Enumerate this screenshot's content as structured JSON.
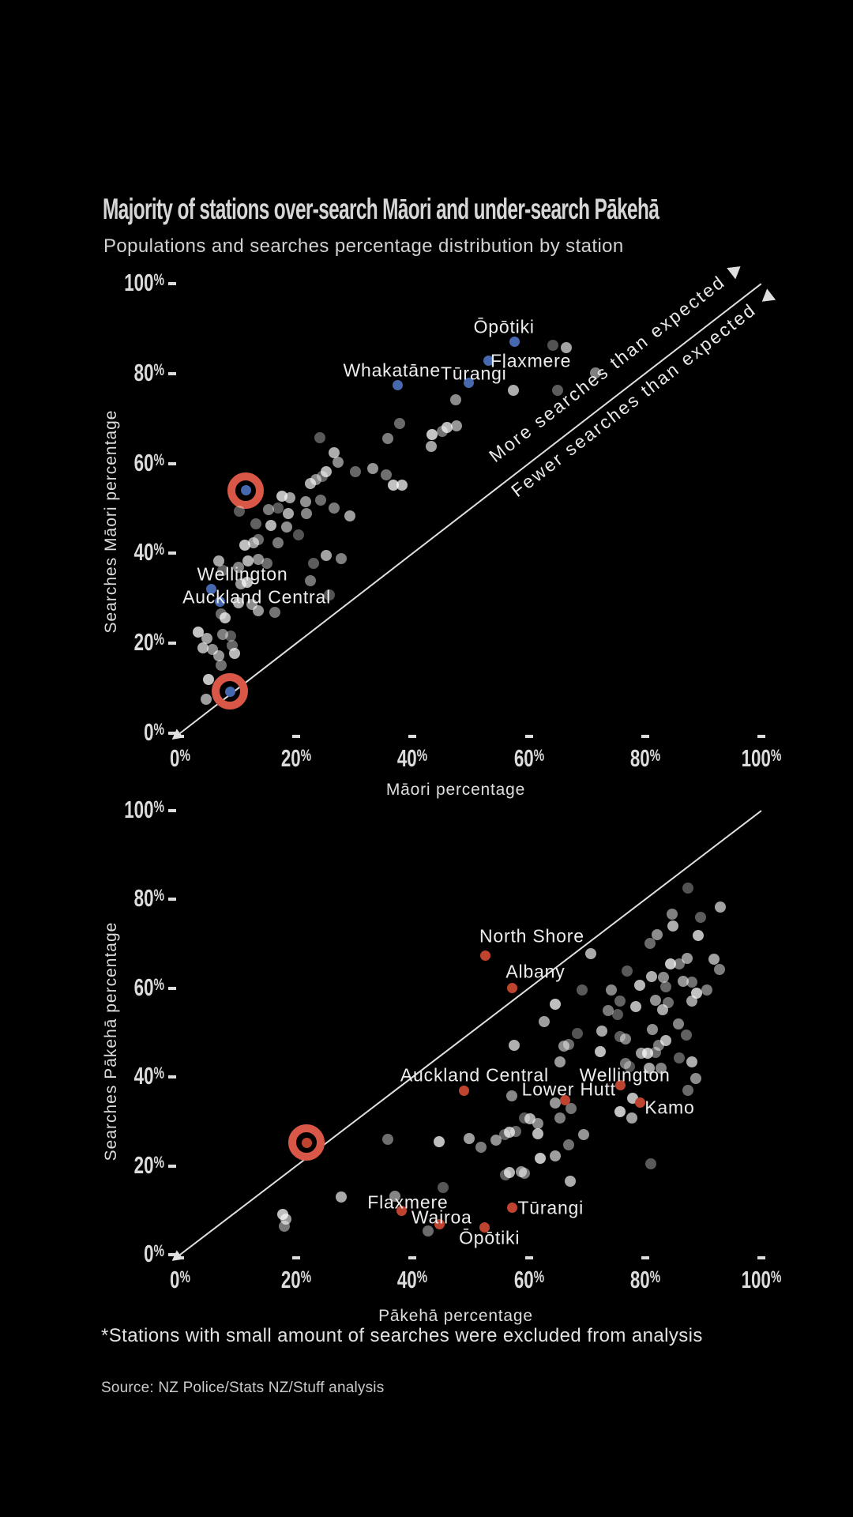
{
  "page": {
    "title": "Majority of stations over-search Māori and under-search Pākehā",
    "subtitle": "Populations and searches percentage distribution by station",
    "footnote": "*Stations with small amount of searches were excluded from analysis",
    "source": "Source: NZ Police/Stats NZ/Stuff analysis"
  },
  "colors": {
    "background": "#000000",
    "gray_dot_base": "#ffffff",
    "blue_dot": "#4668ae",
    "red_dot": "#bf4430",
    "ring": "#d85747",
    "line": "#e0e0e0",
    "text": "#e3e3e3"
  },
  "chart_data": [
    {
      "type": "scatter",
      "title": "Populations and searches percentage distribution by station",
      "xlabel": "Māori percentage",
      "ylabel": "Searches  Māori  percentage",
      "xlim": [
        0,
        100
      ],
      "ylim": [
        0,
        100
      ],
      "x_ticks": [
        0,
        20,
        40,
        60,
        80,
        100
      ],
      "y_ticks": [
        0,
        20,
        40,
        60,
        80,
        100
      ],
      "grid": false,
      "legend": "none",
      "diagonal_line": {
        "from": [
          0,
          0
        ],
        "to": [
          100,
          100
        ]
      },
      "annotations": [
        {
          "text": "More searches than expected",
          "side": "above_line",
          "arrow": "forward"
        },
        {
          "text": "Fewer searches than expected",
          "side": "below_line",
          "arrow": "backward"
        }
      ],
      "labeled_points": [
        {
          "name": "Ōpōtiki",
          "x": 57.5,
          "y": 87.0,
          "color": "blue",
          "label_offset": [
            -13,
            -19
          ]
        },
        {
          "name": "Flaxmere",
          "x": 53.0,
          "y": 82.8,
          "color": "blue",
          "label_offset": [
            54,
            0
          ]
        },
        {
          "name": "Whakatāne",
          "x": 37.4,
          "y": 77.5,
          "color": "blue",
          "label_offset": [
            -7,
            -18
          ]
        },
        {
          "name": "Tūrangi",
          "x": 49.7,
          "y": 77.9,
          "color": "blue",
          "label_offset": [
            6,
            -12
          ]
        },
        {
          "name": "Wellington",
          "x": 5.3,
          "y": 32.0,
          "color": "blue",
          "label_offset": [
            40,
            -19
          ]
        },
        {
          "name": "Auckland Central",
          "x": 6.8,
          "y": 29.3,
          "color": "blue",
          "label_offset": [
            47,
            -5
          ]
        }
      ],
      "circled_points": [
        {
          "x": 11.3,
          "y": 54.0,
          "color": "blue"
        },
        {
          "x": 8.6,
          "y": 9.3,
          "color": "blue"
        }
      ],
      "points": [
        [
          64.1,
          86.3
        ],
        [
          66.4,
          85.8
        ],
        [
          71.4,
          80.1
        ],
        [
          65,
          76.3
        ],
        [
          57.4,
          76.3
        ],
        [
          47.4,
          74.2
        ],
        [
          37.8,
          68.9
        ],
        [
          45.9,
          68
        ],
        [
          47.5,
          68.4
        ],
        [
          45.1,
          67.1
        ],
        [
          43.4,
          66.4
        ],
        [
          43.2,
          63.8
        ],
        [
          35.7,
          65.6
        ],
        [
          24,
          65.7
        ],
        [
          26.5,
          62.4
        ],
        [
          27.2,
          60.3
        ],
        [
          30.2,
          58.2
        ],
        [
          38.2,
          55.2
        ],
        [
          33.2,
          58.9
        ],
        [
          35.4,
          57.5
        ],
        [
          36.7,
          55.2
        ],
        [
          29.2,
          48.3
        ],
        [
          26.5,
          50.1
        ],
        [
          10.2,
          49.4
        ],
        [
          22.4,
          55.5
        ],
        [
          23.4,
          56.4
        ],
        [
          24.5,
          57.1
        ],
        [
          25.2,
          58.1
        ],
        [
          21.6,
          51.5
        ],
        [
          24.2,
          51.9
        ],
        [
          17.5,
          52.7
        ],
        [
          18.9,
          52.4
        ],
        [
          15.2,
          49.7
        ],
        [
          16.8,
          50.1
        ],
        [
          18.6,
          48.9
        ],
        [
          21.7,
          48.9
        ],
        [
          13.1,
          46.6
        ],
        [
          15.6,
          46.2
        ],
        [
          18.3,
          45.9
        ],
        [
          13.4,
          43.1
        ],
        [
          11.1,
          41.8
        ],
        [
          12.7,
          42.4
        ],
        [
          16.9,
          42.4
        ],
        [
          20.4,
          44.1
        ],
        [
          6.7,
          38.3
        ],
        [
          10,
          36.9
        ],
        [
          7.4,
          36.2
        ],
        [
          11.7,
          38.3
        ],
        [
          13.4,
          38.7
        ],
        [
          14.9,
          37.8
        ],
        [
          11.5,
          33.6
        ],
        [
          10.4,
          33.2
        ],
        [
          22.4,
          33.9
        ],
        [
          25.7,
          30.8
        ],
        [
          25.1,
          39.5
        ],
        [
          27.7,
          38.8
        ],
        [
          23,
          37.8
        ],
        [
          10.1,
          29
        ],
        [
          12.4,
          28.6
        ],
        [
          7,
          26.5
        ],
        [
          7.7,
          25.7
        ],
        [
          13.5,
          27.2
        ],
        [
          16.3,
          26.9
        ],
        [
          3.1,
          22.5
        ],
        [
          4.6,
          21.1
        ],
        [
          7.4,
          22
        ],
        [
          8.7,
          21.6
        ],
        [
          4,
          19
        ],
        [
          5.6,
          18.6
        ],
        [
          9,
          19.5
        ],
        [
          9.4,
          17.8
        ],
        [
          6.6,
          17.2
        ],
        [
          7,
          15.1
        ],
        [
          4.9,
          12
        ],
        [
          4.5,
          7.6
        ]
      ]
    },
    {
      "type": "scatter",
      "title": "Populations and searches percentage distribution by station",
      "xlabel": "Pākehā percentage",
      "ylabel": "Searches Pākehā percentage",
      "xlim": [
        0,
        100
      ],
      "ylim": [
        0,
        100
      ],
      "x_ticks": [
        0,
        20,
        40,
        60,
        80,
        100
      ],
      "y_ticks": [
        0,
        20,
        40,
        60,
        80,
        100
      ],
      "grid": false,
      "legend": "none",
      "diagonal_line": {
        "from": [
          0,
          0
        ],
        "to": [
          100,
          100
        ]
      },
      "annotations": [],
      "labeled_points": [
        {
          "name": "North Shore",
          "x": 52.5,
          "y": 67.3,
          "color": "red",
          "label_offset": [
            59,
            -25
          ]
        },
        {
          "name": "Albany",
          "x": 57.2,
          "y": 60.0,
          "color": "red",
          "label_offset": [
            29,
            -21
          ]
        },
        {
          "name": "Auckland Central",
          "x": 48.9,
          "y": 37.0,
          "color": "red",
          "label_offset": [
            13,
            -19
          ]
        },
        {
          "name": "Lower Hutt",
          "x": 66.2,
          "y": 34.8,
          "color": "red",
          "label_offset": [
            5,
            -13
          ]
        },
        {
          "name": "Wellington",
          "x": 75.7,
          "y": 38.1,
          "color": "red",
          "label_offset": [
            6,
            -13
          ]
        },
        {
          "name": "Kamo",
          "x": 79.2,
          "y": 34.2,
          "color": "red",
          "label_offset": [
            37,
            6
          ]
        },
        {
          "name": "Flaxmere",
          "x": 38.1,
          "y": 9.8,
          "color": "red",
          "label_offset": [
            8,
            -11
          ]
        },
        {
          "name": "Wairoa",
          "x": 44.6,
          "y": 6.8,
          "color": "red",
          "label_offset": [
            3,
            -9
          ]
        },
        {
          "name": "Ōpōtiki",
          "x": 52.4,
          "y": 6.2,
          "color": "red",
          "label_offset": [
            6,
            14
          ]
        },
        {
          "name": "Tūrangi",
          "x": 57.1,
          "y": 10.5,
          "color": "red",
          "label_offset": [
            49,
            0
          ]
        }
      ],
      "circled_points": [
        {
          "x": 21.8,
          "y": 25.2,
          "color": "red"
        }
      ],
      "points": [
        [
          87.3,
          82.6
        ],
        [
          92.9,
          78.3
        ],
        [
          84.7,
          76.7
        ],
        [
          89.5,
          76
        ],
        [
          84.8,
          74
        ],
        [
          82.1,
          72.1
        ],
        [
          80.9,
          70.1
        ],
        [
          89.1,
          71.9
        ],
        [
          87.2,
          66.7
        ],
        [
          85.9,
          65.5
        ],
        [
          84.4,
          65.5
        ],
        [
          91.8,
          66.5
        ],
        [
          92.8,
          64.2
        ],
        [
          76.9,
          63.9
        ],
        [
          81.1,
          62.6
        ],
        [
          83.2,
          62.5
        ],
        [
          83.5,
          60.3
        ],
        [
          79.1,
          60.7
        ],
        [
          86.6,
          61.6
        ],
        [
          88,
          61.4
        ],
        [
          88.8,
          58.9
        ],
        [
          88,
          57.1
        ],
        [
          90.6,
          59.6
        ],
        [
          69.1,
          59.6
        ],
        [
          70.6,
          67.8
        ],
        [
          74.2,
          59.6
        ],
        [
          75.7,
          57.1
        ],
        [
          78.4,
          55.9
        ],
        [
          81.8,
          57.3
        ],
        [
          83.9,
          56.8
        ],
        [
          64.5,
          56.4
        ],
        [
          62.7,
          52.5
        ],
        [
          73.6,
          55
        ],
        [
          75.3,
          54.1
        ],
        [
          83,
          55.2
        ],
        [
          85.8,
          52
        ],
        [
          87.1,
          49.5
        ],
        [
          83.5,
          48.2
        ],
        [
          81.2,
          50.7
        ],
        [
          81.8,
          45.6
        ],
        [
          80.5,
          45.4
        ],
        [
          79.4,
          45.4
        ],
        [
          82.4,
          47.2
        ],
        [
          68.4,
          49.8
        ],
        [
          72.5,
          50.4
        ],
        [
          76.6,
          48.6
        ],
        [
          75.7,
          49.1
        ],
        [
          57.5,
          47.2
        ],
        [
          66,
          47
        ],
        [
          66.9,
          47.3
        ],
        [
          72.3,
          45.7
        ],
        [
          65.4,
          43.4
        ],
        [
          76.6,
          43.1
        ],
        [
          77.3,
          42.3
        ],
        [
          80.7,
          42
        ],
        [
          82.8,
          42
        ],
        [
          85.9,
          44.3
        ],
        [
          88,
          43.4
        ],
        [
          88.7,
          39.7
        ],
        [
          87.3,
          37
        ],
        [
          77.9,
          35.2
        ],
        [
          64.6,
          34.2
        ],
        [
          67.3,
          32.9
        ],
        [
          75.7,
          32.2
        ],
        [
          77.7,
          30.8
        ],
        [
          65.4,
          30.8
        ],
        [
          59.2,
          30.8
        ],
        [
          60.2,
          30.6
        ],
        [
          61.6,
          29.5
        ],
        [
          57.8,
          27.8
        ],
        [
          61.6,
          27.2
        ],
        [
          69.4,
          27
        ],
        [
          66.8,
          24.7
        ],
        [
          61.9,
          21.7
        ],
        [
          64.6,
          22.2
        ],
        [
          59.2,
          18.3
        ],
        [
          81,
          20.5
        ],
        [
          67.1,
          16.5
        ],
        [
          57.1,
          35.8
        ],
        [
          55.9,
          27
        ],
        [
          56.7,
          27.6
        ],
        [
          54.4,
          25.8
        ],
        [
          35.7,
          26
        ],
        [
          44.5,
          25.4
        ],
        [
          49.7,
          26.2
        ],
        [
          51.8,
          24.2
        ],
        [
          45.2,
          15.1
        ],
        [
          27.7,
          13
        ],
        [
          37,
          13.2
        ],
        [
          56,
          18
        ],
        [
          56.7,
          18.5
        ],
        [
          58.7,
          18.7
        ],
        [
          42.6,
          5.3
        ],
        [
          17.6,
          9.1
        ],
        [
          18.2,
          8
        ],
        [
          17.9,
          6.4
        ]
      ]
    }
  ]
}
